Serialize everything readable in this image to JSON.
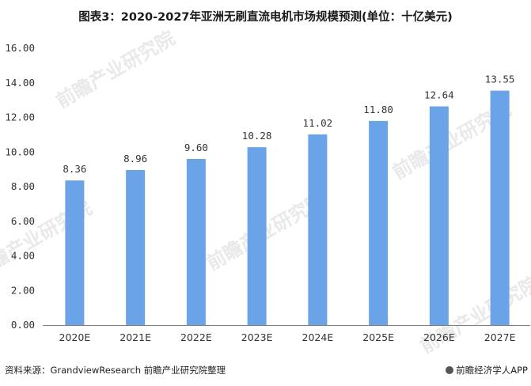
{
  "header": {
    "title": "图表3：2020-2027年亚洲无刷直流电机市场规模预测(单位：十亿美元)"
  },
  "footer": {
    "source": "资料来源：GrandviewResearch 前瞻产业研究院整理",
    "brand": "前瞻经济学人APP"
  },
  "watermark_text": "前瞻产业研究院",
  "colors": {
    "bar": "#6aa3e8",
    "axis": "#7f7f7f",
    "tick_text": "#333333"
  },
  "chart_data": {
    "type": "bar",
    "title": "图表3：2020-2027年亚洲无刷直流电机市场规模预测(单位：十亿美元)",
    "categories": [
      "2020E",
      "2021E",
      "2022E",
      "2023E",
      "2024E",
      "2025E",
      "2026E",
      "2027E"
    ],
    "values": [
      8.36,
      8.96,
      9.6,
      10.28,
      11.02,
      11.8,
      12.64,
      13.55
    ],
    "data_labels": [
      "8.36",
      "8.96",
      "9.60",
      "10.28",
      "11.02",
      "11.80",
      "12.64",
      "13.55"
    ],
    "y_ticks": [
      "0.00",
      "2.00",
      "4.00",
      "6.00",
      "8.00",
      "10.00",
      "12.00",
      "14.00",
      "16.00"
    ],
    "ylim": [
      0,
      16
    ],
    "grid": false,
    "legend": "none"
  }
}
